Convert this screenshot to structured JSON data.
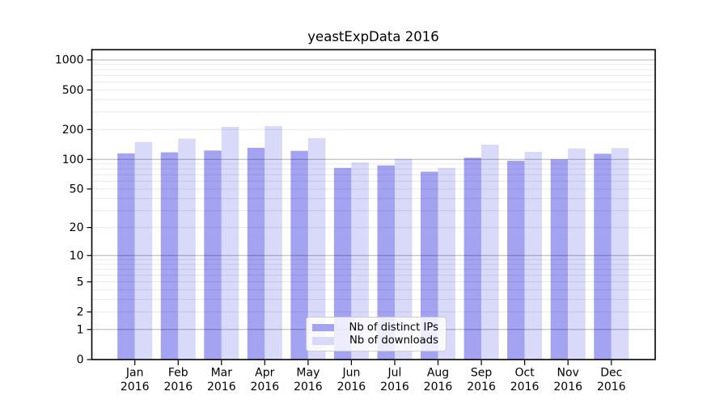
{
  "chart_data": {
    "type": "bar",
    "title": "yeastExpData 2016",
    "categories": [
      "Jan",
      "Feb",
      "Mar",
      "Apr",
      "May",
      "Jun",
      "Jul",
      "Aug",
      "Sep",
      "Oct",
      "Nov",
      "Dec"
    ],
    "category_year": "2016",
    "series": [
      {
        "name": "Nb of distinct IPs",
        "color": "#a3a3f2",
        "values": [
          115,
          118,
          123,
          131,
          122,
          82,
          87,
          75,
          104,
          97,
          100,
          114
        ]
      },
      {
        "name": "Nb of downloads",
        "color": "#d9d9f9",
        "values": [
          150,
          162,
          213,
          216,
          164,
          93,
          101,
          82,
          141,
          119,
          129,
          130
        ]
      }
    ],
    "y_ticks": [
      0,
      1,
      2,
      5,
      10,
      20,
      50,
      100,
      200,
      500,
      1000
    ],
    "y_major_gridlines": [
      1,
      10,
      100,
      1000
    ],
    "ylim": [
      0,
      1150
    ],
    "y_scale": "log-like (position proportional to log10(value+1))",
    "xlabel": "",
    "ylabel": "",
    "grid": "horizontal major (gray) + minor (light gray), drawn over bars",
    "legend_position": "inside, lower center"
  }
}
